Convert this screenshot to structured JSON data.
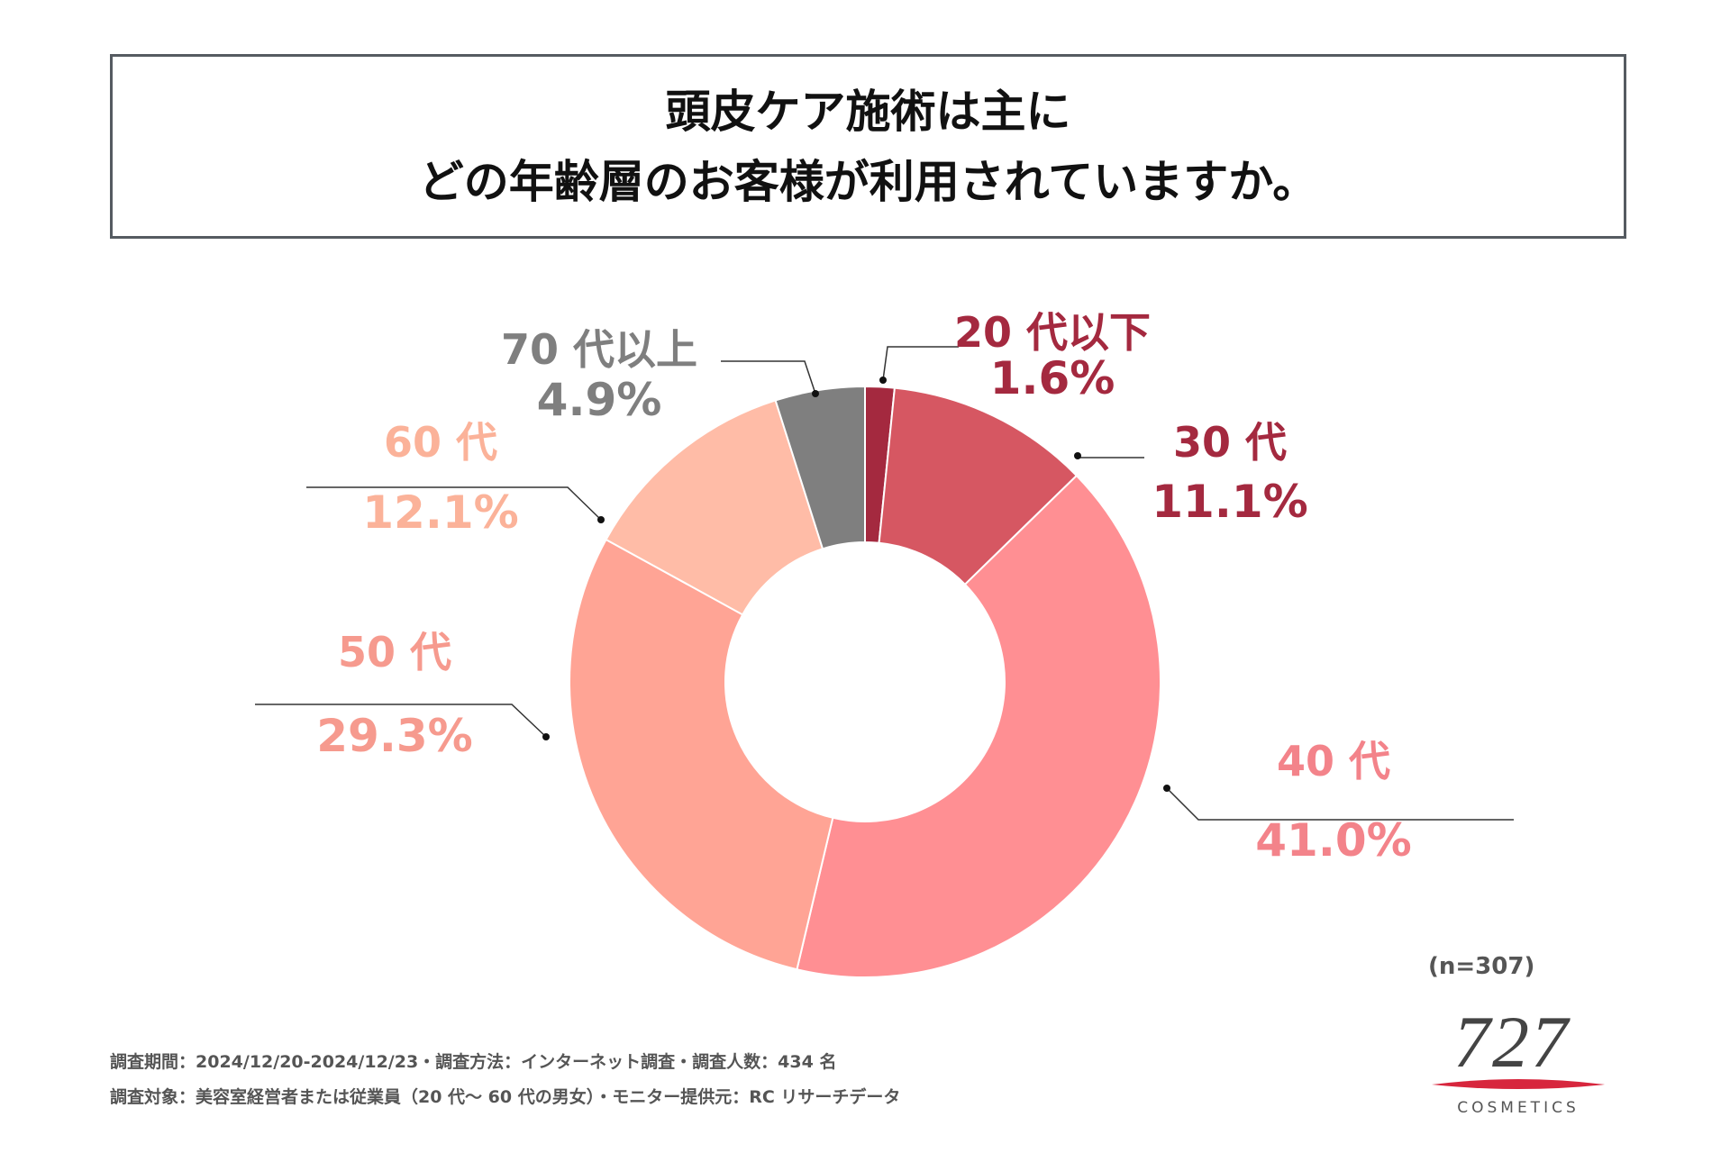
{
  "title": {
    "line1": "頭皮ケア施術は主に",
    "line2": "どの年齢層のお客様が利用されていますか。"
  },
  "chart_data": {
    "type": "pie",
    "variant": "donut",
    "start": "top",
    "slices": [
      {
        "label": "20 代以下",
        "value": 1.6,
        "value_label": "1.6%",
        "color": "#a4293f",
        "label_color": "#a4293f"
      },
      {
        "label": "30 代",
        "value": 11.1,
        "value_label": "11.1%",
        "color": "#d65762",
        "label_color": "#a4293f"
      },
      {
        "label": "40 代",
        "value": 41.0,
        "value_label": "41.0%",
        "color": "#ff8f93",
        "label_color": "#f3838a"
      },
      {
        "label": "50 代",
        "value": 29.3,
        "value_label": "29.3%",
        "color": "#ffa495",
        "label_color": "#f69a8e"
      },
      {
        "label": "60 代",
        "value": 12.1,
        "value_label": "12.1%",
        "color": "#ffbca7",
        "label_color": "#fbb299"
      },
      {
        "label": "70 代以上",
        "value": 4.9,
        "value_label": "4.9%",
        "color": "#7f7f7f",
        "label_color": "#7f7f7f"
      }
    ]
  },
  "sample": "(n=307)",
  "footnotes": {
    "line1": "調査期間：2024/12/20-2024/12/23・調査方法：インターネット調査・調査人数：434 名",
    "line2": "調査対象：美容室経営者または従業員（20 代～ 60 代の男女）・モニター提供元：RC リサーチデータ"
  },
  "logo": {
    "number": "727",
    "text": "COSMETICS",
    "color": "#d7263d"
  }
}
